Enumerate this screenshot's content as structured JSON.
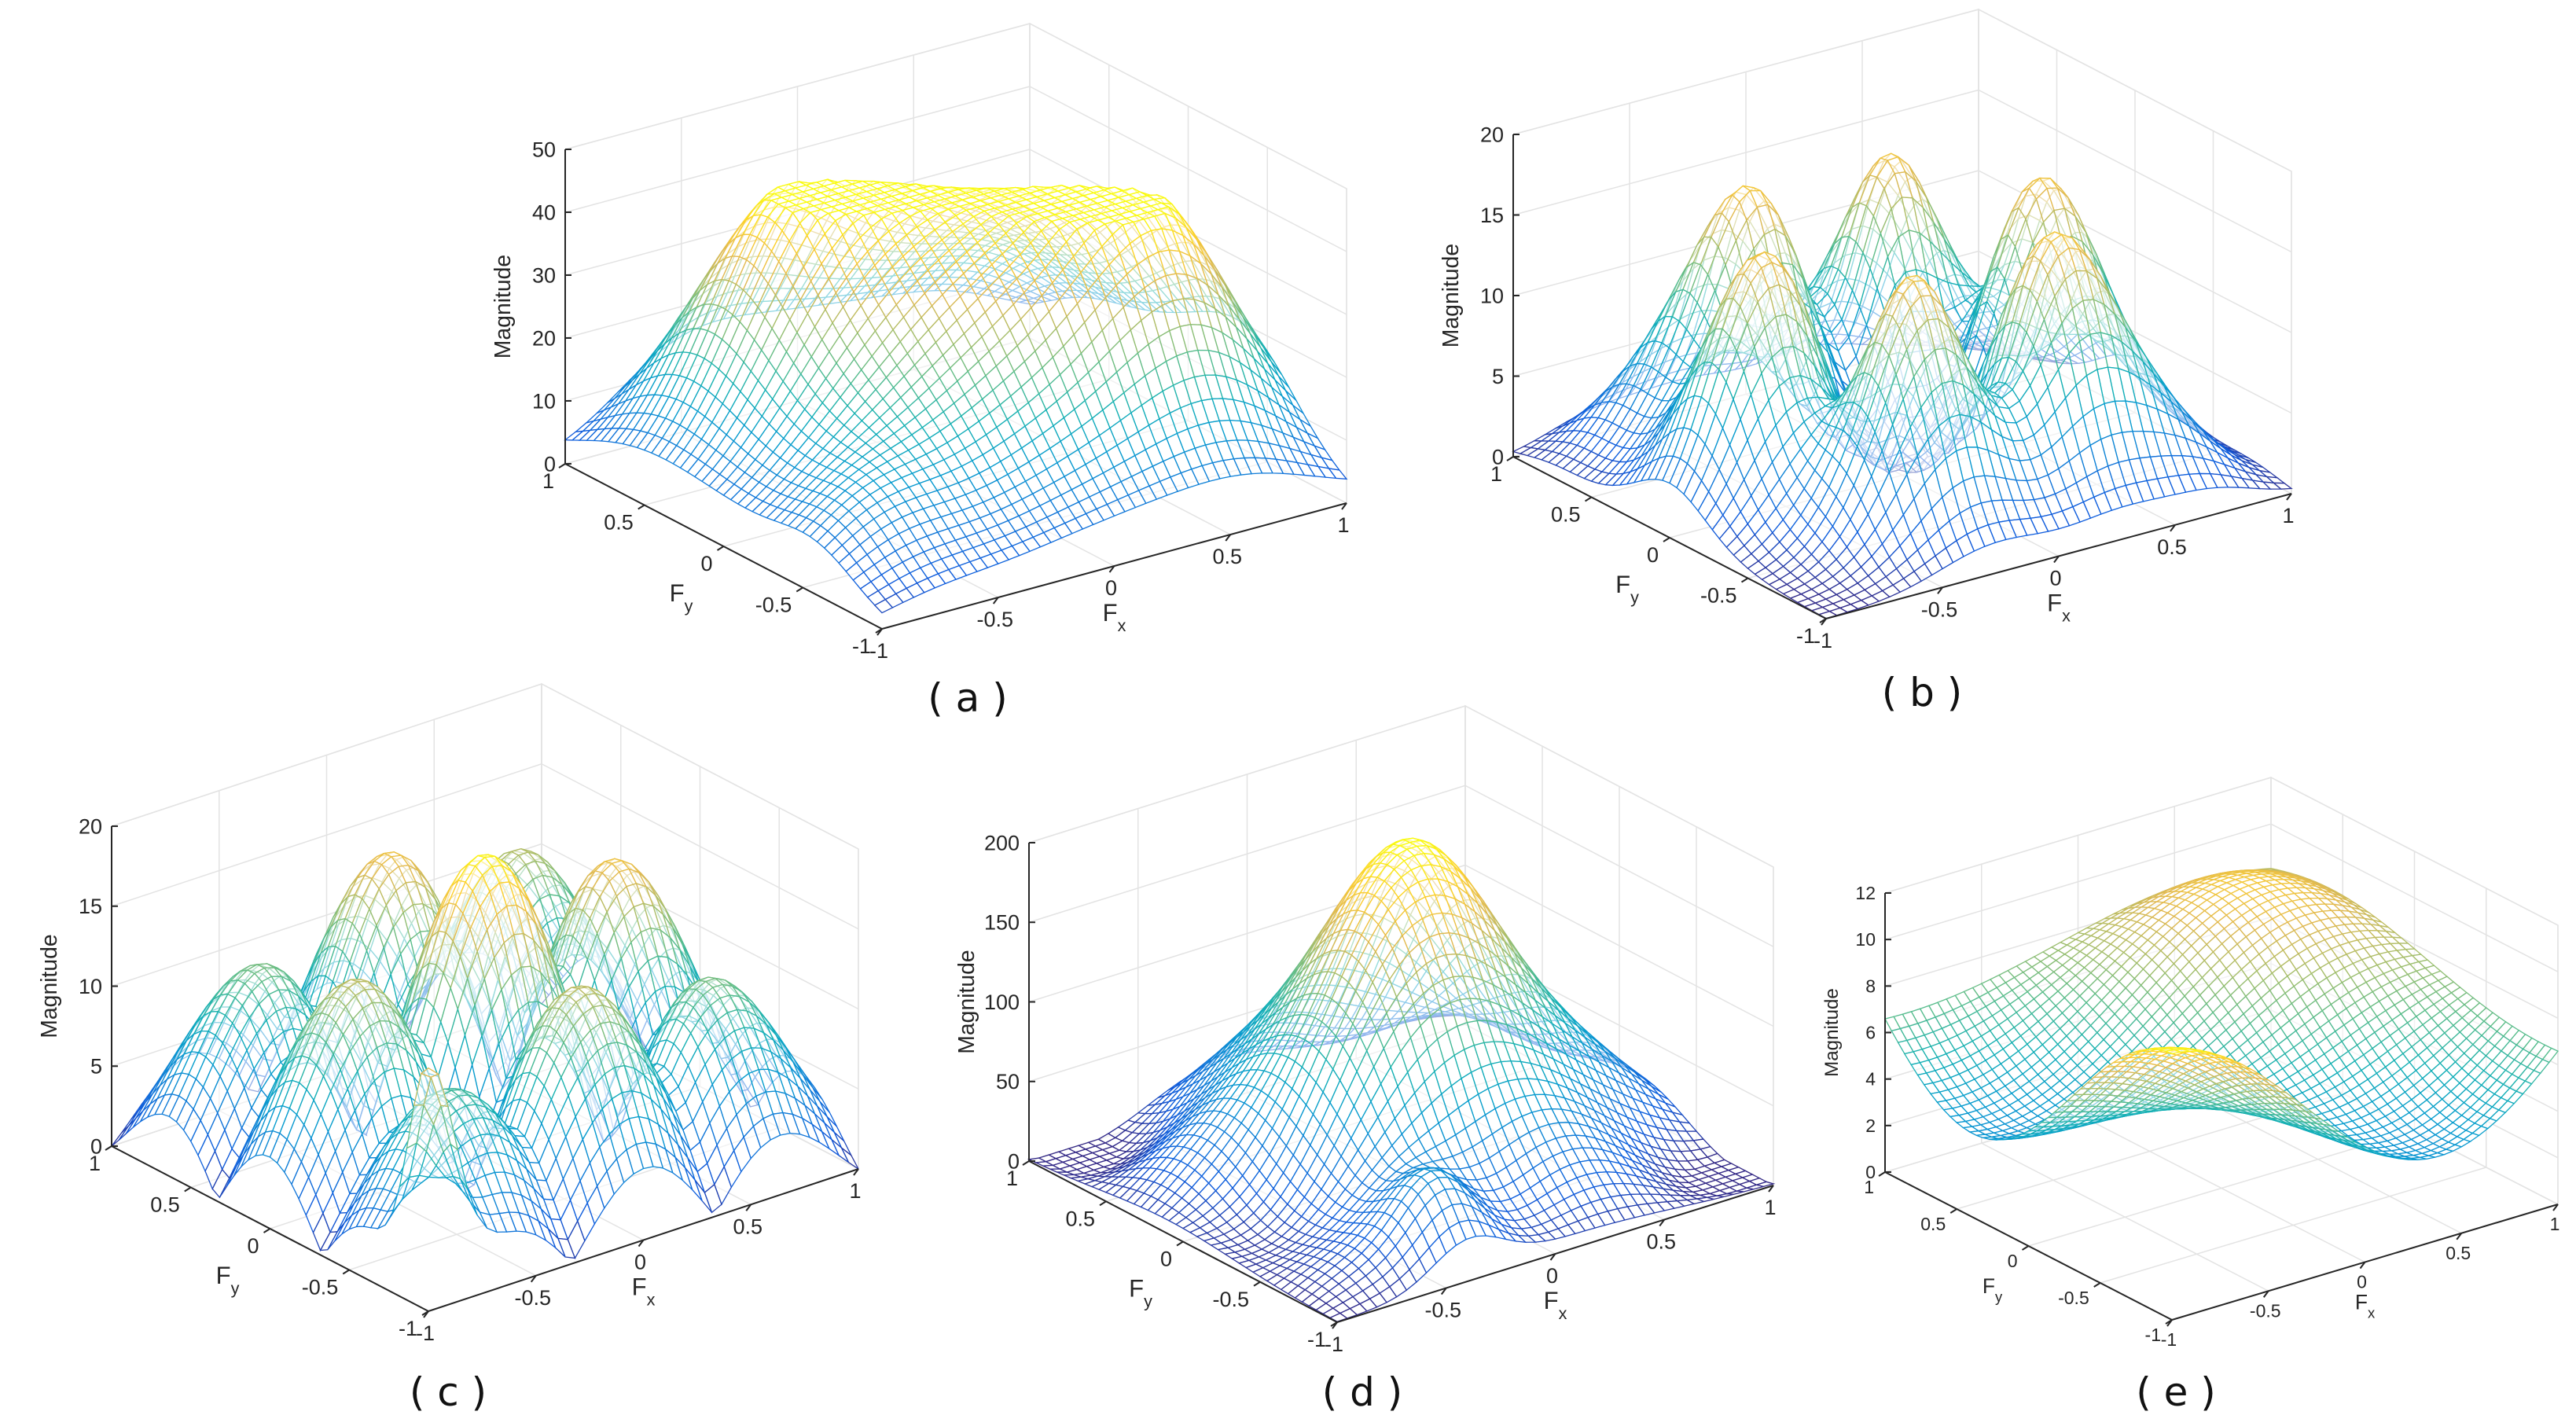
{
  "figure_title": "",
  "chart_data": [
    {
      "id": "a",
      "caption": "( a )",
      "type": "surface-mesh",
      "title": "",
      "xlabel": "F",
      "xlabel_sub": "x",
      "ylabel": "F",
      "ylabel_sub": "y",
      "zlabel": "Magnitude",
      "xlim": [
        -1,
        1
      ],
      "ylim": [
        -1,
        1
      ],
      "zlim": [
        0,
        50
      ],
      "x_ticks": [
        "-1",
        "-0.5",
        "0",
        "0.5",
        "1"
      ],
      "y_ticks": [
        "-1",
        "-0.5",
        "0",
        "0.5",
        "1"
      ],
      "z_ticks": [
        "0",
        "10",
        "20",
        "30",
        "40",
        "50"
      ],
      "z_max": 43,
      "colormap": "parula"
    },
    {
      "id": "b",
      "caption": "( b )",
      "type": "surface-mesh",
      "title": "",
      "xlabel": "F",
      "xlabel_sub": "x",
      "ylabel": "F",
      "ylabel_sub": "y",
      "zlabel": "Magnitude",
      "xlim": [
        -1,
        1
      ],
      "ylim": [
        -1,
        1
      ],
      "zlim": [
        0,
        20
      ],
      "x_ticks": [
        "-1",
        "-0.5",
        "0",
        "0.5",
        "1"
      ],
      "y_ticks": [
        "-1",
        "-0.5",
        "0",
        "0.5",
        "1"
      ],
      "z_ticks": [
        "0",
        "5",
        "10",
        "15",
        "20"
      ],
      "z_max": 19,
      "colormap": "parula"
    },
    {
      "id": "c",
      "caption": "( c )",
      "type": "surface-mesh",
      "title": "",
      "xlabel": "F",
      "xlabel_sub": "x",
      "ylabel": "F",
      "ylabel_sub": "y",
      "zlabel": "Magnitude",
      "xlim": [
        -1,
        1
      ],
      "ylim": [
        -1,
        1
      ],
      "zlim": [
        0,
        20
      ],
      "x_ticks": [
        "-1",
        "-0.5",
        "0",
        "0.5",
        "1"
      ],
      "y_ticks": [
        "-1",
        "-0.5",
        "0",
        "0.5",
        "1"
      ],
      "z_ticks": [
        "0",
        "5",
        "10",
        "15",
        "20"
      ],
      "z_max": 19,
      "colormap": "parula"
    },
    {
      "id": "d",
      "caption": "( d )",
      "type": "surface-mesh",
      "title": "",
      "xlabel": "F",
      "xlabel_sub": "x",
      "ylabel": "F",
      "ylabel_sub": "y",
      "zlabel": "Magnitude",
      "xlim": [
        -1,
        1
      ],
      "ylim": [
        -1,
        1
      ],
      "zlim": [
        0,
        200
      ],
      "x_ticks": [
        "-1",
        "-0.5",
        "0",
        "0.5",
        "1"
      ],
      "y_ticks": [
        "-1",
        "-0.5",
        "0",
        "0.5",
        "1"
      ],
      "z_ticks": [
        "0",
        "50",
        "100",
        "150",
        "200"
      ],
      "z_max": 195,
      "colormap": "parula"
    },
    {
      "id": "e",
      "caption": "( e )",
      "type": "surface-mesh",
      "title": "",
      "xlabel": "F",
      "xlabel_sub": "x",
      "ylabel": "F",
      "ylabel_sub": "y",
      "zlabel": "Magnitude",
      "xlim": [
        -1,
        1
      ],
      "ylim": [
        -1,
        1
      ],
      "zlim": [
        0,
        12
      ],
      "x_ticks": [
        "-1",
        "-0.5",
        "0",
        "0.5",
        "1"
      ],
      "y_ticks": [
        "-1",
        "-0.5",
        "0",
        "0.5",
        "1"
      ],
      "z_ticks": [
        "0",
        "2",
        "4",
        "6",
        "8",
        "10",
        "12"
      ],
      "z_max": 11.6,
      "colormap": "parula"
    }
  ]
}
